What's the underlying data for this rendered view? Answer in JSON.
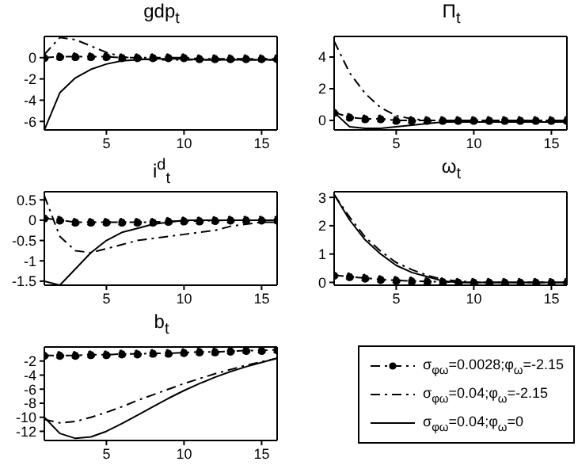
{
  "chart_data": [
    {
      "type": "line",
      "title": "gdp$_{t}$",
      "x": [
        1,
        2,
        3,
        4,
        5,
        6,
        7,
        8,
        9,
        10,
        11,
        12,
        13,
        14,
        15,
        16
      ],
      "xlim": [
        1,
        16
      ],
      "xticks": [
        5,
        10,
        15
      ],
      "ylim": [
        -6.8,
        2
      ],
      "yticks": [
        -6,
        -4,
        -2,
        0
      ],
      "series": [
        {
          "color": "#000000",
          "line_style": "dashed",
          "marker": "circle",
          "values": [
            0,
            0.1,
            0.1,
            0.1,
            0.1,
            0,
            0,
            0,
            0,
            0,
            -0.1,
            -0.1,
            -0.1,
            -0.1,
            -0.1,
            -0.1
          ]
        },
        {
          "color": "#000000",
          "line_style": "dashed",
          "marker": "none",
          "values": [
            0.3,
            1.9,
            1.7,
            1.1,
            0.5,
            0.1,
            -0.1,
            -0.2,
            -0.2,
            -0.2,
            -0.2,
            -0.2,
            -0.2,
            -0.2,
            -0.2,
            -0.2
          ]
        },
        {
          "color": "#000000",
          "line_style": "solid",
          "marker": "none",
          "values": [
            -6.8,
            -3.3,
            -1.9,
            -1.1,
            -0.6,
            -0.3,
            -0.2,
            -0.1,
            -0.1,
            -0.1,
            -0.2,
            -0.2,
            -0.2,
            -0.2,
            -0.2,
            -0.2
          ]
        }
      ]
    },
    {
      "type": "line",
      "title": "Π$_{t}$",
      "x": [
        1,
        2,
        3,
        4,
        5,
        6,
        7,
        8,
        9,
        10,
        11,
        12,
        13,
        14,
        15,
        16
      ],
      "xlim": [
        1,
        16
      ],
      "xticks": [
        5,
        10,
        15
      ],
      "ylim": [
        -0.6,
        5.3
      ],
      "yticks": [
        0,
        2,
        4
      ],
      "series": [
        {
          "color": "#000000",
          "line_style": "dashed",
          "marker": "circle",
          "values": [
            0.5,
            0.2,
            0.1,
            0.1,
            0,
            0,
            0,
            0,
            0,
            0,
            0,
            0,
            0,
            0,
            0,
            0
          ]
        },
        {
          "color": "#000000",
          "line_style": "dashed",
          "marker": "none",
          "values": [
            5,
            3,
            1.7,
            0.8,
            0.3,
            0.1,
            0,
            0,
            0,
            0,
            0,
            0,
            0,
            0,
            0,
            0
          ]
        },
        {
          "color": "#000000",
          "line_style": "solid",
          "marker": "none",
          "values": [
            0.5,
            -0.4,
            -0.5,
            -0.5,
            -0.4,
            -0.3,
            -0.2,
            -0.1,
            -0.1,
            -0.1,
            -0.1,
            -0.1,
            -0.1,
            -0.1,
            -0.1,
            -0.1
          ]
        }
      ]
    },
    {
      "type": "line",
      "title": "i$^{d}$$_{t}$",
      "x": [
        1,
        2,
        3,
        4,
        5,
        6,
        7,
        8,
        9,
        10,
        11,
        12,
        13,
        14,
        15,
        16
      ],
      "xlim": [
        1,
        16
      ],
      "xticks": [
        5,
        10,
        15
      ],
      "ylim": [
        -1.6,
        0.7
      ],
      "yticks": [
        0.5,
        0,
        -0.5,
        -1,
        -1.5
      ],
      "series": [
        {
          "color": "#000000",
          "line_style": "dashed",
          "marker": "circle",
          "values": [
            0.05,
            0,
            -0.05,
            -0.05,
            -0.05,
            -0.05,
            -0.05,
            -0.05,
            -0.03,
            -0.02,
            -0.02,
            -0.01,
            0,
            0,
            0,
            0
          ]
        },
        {
          "color": "#000000",
          "line_style": "dashed",
          "marker": "none",
          "values": [
            0.6,
            -0.4,
            -0.75,
            -0.8,
            -0.7,
            -0.6,
            -0.5,
            -0.45,
            -0.4,
            -0.35,
            -0.3,
            -0.25,
            -0.15,
            -0.1,
            -0.05,
            -0.05
          ]
        },
        {
          "color": "#000000",
          "line_style": "solid",
          "marker": "none",
          "values": [
            -1.5,
            -1.6,
            -1.2,
            -0.8,
            -0.5,
            -0.3,
            -0.2,
            -0.1,
            -0.05,
            0,
            0,
            0,
            0,
            0,
            0,
            0
          ]
        }
      ]
    },
    {
      "type": "line",
      "title": "ω$_{t}$",
      "x": [
        1,
        2,
        3,
        4,
        5,
        6,
        7,
        8,
        9,
        10,
        11,
        12,
        13,
        14,
        15,
        16
      ],
      "xlim": [
        1,
        16
      ],
      "xticks": [
        5,
        10,
        15
      ],
      "ylim": [
        -0.1,
        3.2
      ],
      "yticks": [
        0,
        1,
        2,
        3
      ],
      "series": [
        {
          "color": "#000000",
          "line_style": "dashed",
          "marker": "circle",
          "values": [
            0.25,
            0.2,
            0.15,
            0.1,
            0.07,
            0.05,
            0.03,
            0.02,
            0,
            0,
            0,
            0,
            0,
            0,
            0,
            0
          ]
        },
        {
          "color": "#000000",
          "line_style": "dashed",
          "marker": "none",
          "values": [
            3.1,
            2.3,
            1.6,
            1.1,
            0.7,
            0.45,
            0.25,
            0.1,
            0.05,
            0,
            0,
            0,
            0,
            0,
            0,
            0
          ]
        },
        {
          "color": "#000000",
          "line_style": "solid",
          "marker": "none",
          "values": [
            3.1,
            2.2,
            1.5,
            1,
            0.6,
            0.35,
            0.2,
            0.05,
            0,
            0,
            0,
            0,
            0,
            0,
            0,
            0
          ]
        }
      ]
    },
    {
      "type": "line",
      "title": "b$_{t}$",
      "x": [
        1,
        2,
        3,
        4,
        5,
        6,
        7,
        8,
        9,
        10,
        11,
        12,
        13,
        14,
        15,
        16
      ],
      "xlim": [
        1,
        16
      ],
      "xticks": [
        5,
        10,
        15
      ],
      "ylim": [
        -13.3,
        0
      ],
      "yticks": [
        -2,
        -4,
        -6,
        -8,
        -10,
        -12
      ],
      "legend": "right",
      "series": [
        {
          "name": "σ$_{φω}$=0.0028;φ$_{ω}$=-2.15",
          "color": "#000000",
          "line_style": "dashed",
          "marker": "circle",
          "values": [
            -1.2,
            -1.2,
            -1.2,
            -1.1,
            -1.1,
            -1,
            -1,
            -0.9,
            -0.9,
            -0.8,
            -0.7,
            -0.7,
            -0.6,
            -0.5,
            -0.5,
            -0.4
          ]
        },
        {
          "name": "σ$_{φω}$=0.04;φ$_{ω}$=-2.15",
          "color": "#000000",
          "line_style": "dashed",
          "marker": "none",
          "values": [
            -10.3,
            -10.8,
            -10.6,
            -10,
            -9.3,
            -8.5,
            -7.6,
            -6.8,
            -6,
            -5.2,
            -4.5,
            -3.8,
            -3.2,
            -2.6,
            -2.1,
            -1.6
          ]
        },
        {
          "name": "σ$_{φω}$=0.04;φ$_{ω}$=0",
          "color": "#000000",
          "line_style": "solid",
          "marker": "none",
          "values": [
            -10,
            -12.3,
            -13,
            -12.8,
            -12,
            -10.9,
            -9.7,
            -8.5,
            -7.3,
            -6.2,
            -5.2,
            -4.3,
            -3.5,
            -2.8,
            -2.2,
            -1.6
          ]
        }
      ]
    }
  ]
}
